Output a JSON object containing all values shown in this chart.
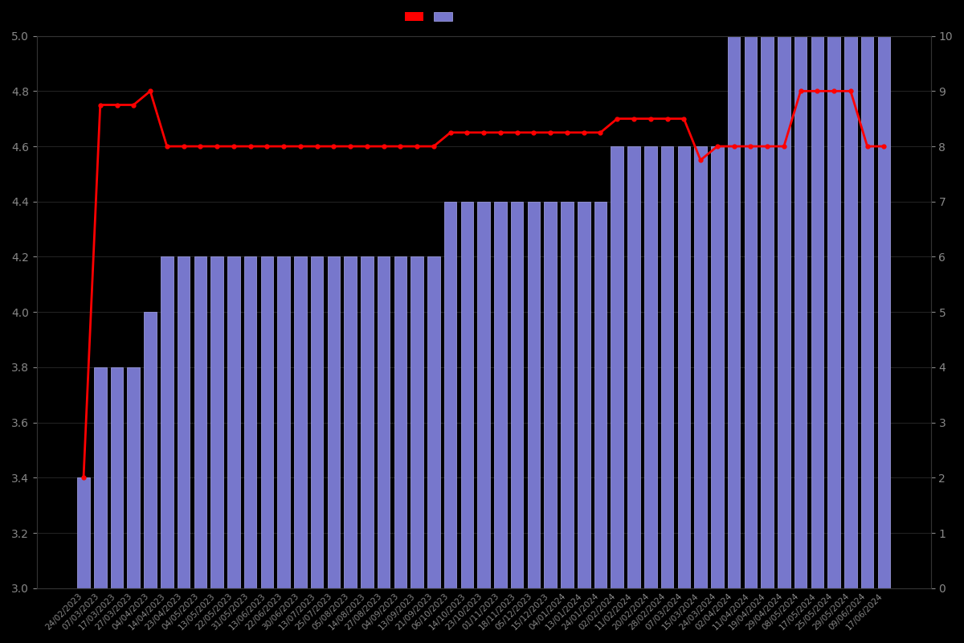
{
  "dates": [
    "24/02/2023",
    "07/03/2023",
    "17/03/2023",
    "27/03/2023",
    "04/04/2023",
    "14/04/2023",
    "23/04/2023",
    "04/05/2023",
    "13/05/2023",
    "22/05/2023",
    "31/05/2023",
    "13/06/2023",
    "22/06/2023",
    "30/06/2023",
    "13/07/2023",
    "25/07/2023",
    "05/08/2023",
    "14/08/2023",
    "27/08/2023",
    "04/09/2023",
    "13/09/2023",
    "21/09/2023",
    "06/10/2023",
    "14/10/2023",
    "23/10/2023",
    "01/11/2023",
    "18/11/2023",
    "05/12/2023",
    "15/12/2023",
    "04/01/2024",
    "13/01/2024",
    "24/01/2024",
    "02/02/2024",
    "11/02/2024",
    "20/02/2024",
    "28/02/2024",
    "07/03/2024",
    "15/03/2024",
    "24/03/2024",
    "02/04/2024",
    "11/04/2024",
    "19/04/2024",
    "29/04/2024",
    "08/05/2024",
    "17/05/2024",
    "25/05/2024",
    "29/05/2024",
    "09/06/2024",
    "17/06/2024"
  ],
  "bar_values": [
    3.4,
    3.8,
    3.8,
    3.8,
    4.0,
    4.2,
    4.2,
    4.2,
    4.2,
    4.2,
    4.2,
    4.2,
    4.2,
    4.2,
    4.2,
    4.2,
    4.2,
    4.2,
    4.2,
    4.2,
    4.2,
    4.2,
    4.4,
    4.4,
    4.4,
    4.4,
    4.4,
    4.4,
    4.4,
    4.4,
    4.4,
    4.4,
    4.6,
    4.6,
    4.6,
    4.6,
    4.6,
    4.6,
    4.6,
    5.0,
    5.0,
    5.0,
    5.0,
    5.0,
    5.0,
    5.0,
    5.0,
    5.0,
    5.0
  ],
  "line_values": [
    3.4,
    4.75,
    4.75,
    4.75,
    4.8,
    4.6,
    4.6,
    4.6,
    4.6,
    4.6,
    4.6,
    4.6,
    4.6,
    4.6,
    4.6,
    4.6,
    4.6,
    4.6,
    4.6,
    4.6,
    4.6,
    4.6,
    4.65,
    4.65,
    4.65,
    4.65,
    4.65,
    4.65,
    4.65,
    4.65,
    4.65,
    4.65,
    4.7,
    4.7,
    4.7,
    4.7,
    4.7,
    4.55,
    4.6,
    4.6,
    4.6,
    4.6,
    4.6,
    4.8,
    4.8,
    4.8,
    4.8,
    4.6,
    4.6
  ],
  "bar_color": "#7777cc",
  "bar_edge_color": "#aaaaee",
  "line_color": "#ff0000",
  "background_color": "#000000",
  "text_color": "#888888",
  "grid_color": "#333333",
  "left_ylim": [
    3.0,
    5.0
  ],
  "right_ylim": [
    0,
    10
  ],
  "left_yticks": [
    3.0,
    3.2,
    3.4,
    3.6,
    3.8,
    4.0,
    4.2,
    4.4,
    4.6,
    4.8,
    5.0
  ],
  "right_yticks": [
    0,
    1,
    2,
    3,
    4,
    5,
    6,
    7,
    8,
    9,
    10
  ],
  "figsize": [
    12,
    8
  ],
  "dpi": 100
}
